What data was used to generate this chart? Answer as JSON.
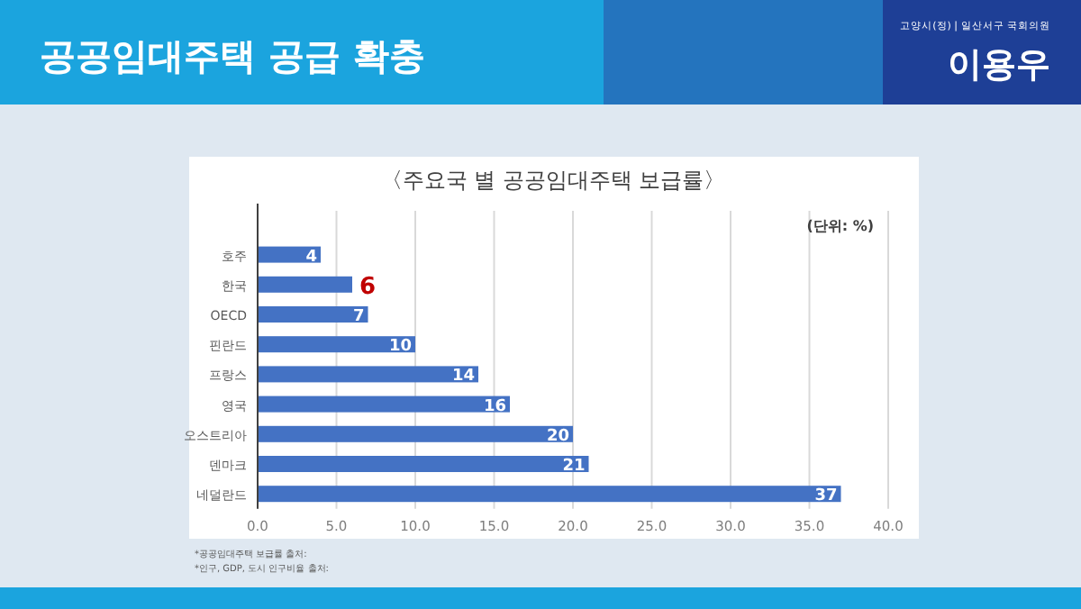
{
  "chart_data": {
    "type": "bar",
    "orientation": "horizontal",
    "title": "〈주요국 별 공공임대주택 보급률〉",
    "categories": [
      "호주",
      "한국",
      "OECD",
      "핀란드",
      "프랑스",
      "영국",
      "오스트리아",
      "덴마크",
      "네덜란드"
    ],
    "values": [
      4,
      6,
      7,
      10,
      14,
      16,
      20,
      21,
      37
    ],
    "value_labels": [
      "4",
      null,
      "7",
      "10",
      "14",
      "16",
      "20",
      "21",
      "37"
    ],
    "color": "#4472c4",
    "xlim": [
      0,
      40
    ],
    "xticks": [
      {
        "value": 0,
        "label": "0.0"
      },
      {
        "value": 5,
        "label": "5.0"
      },
      {
        "value": 10,
        "label": "10.0"
      },
      {
        "value": 15,
        "label": "15.0"
      },
      {
        "value": 20,
        "label": "20.0"
      },
      {
        "value": 25,
        "label": "25.0"
      },
      {
        "value": 30,
        "label": "30.0"
      },
      {
        "value": 35,
        "label": "35.0"
      },
      {
        "value": 40,
        "label": "40.0"
      }
    ],
    "grid": "x",
    "annotations": [
      "공공임대주택 공급 확충",
      "고양시(정) | 일산서구 국회의원",
      "이용우",
      "(단위: %)",
      {
        "text": "6",
        "x": 6,
        "y": "한국"
      },
      "*공공임대주택 보급률 출처:",
      "*인구, GDP, 도시 인구비율 출처:"
    ]
  }
}
